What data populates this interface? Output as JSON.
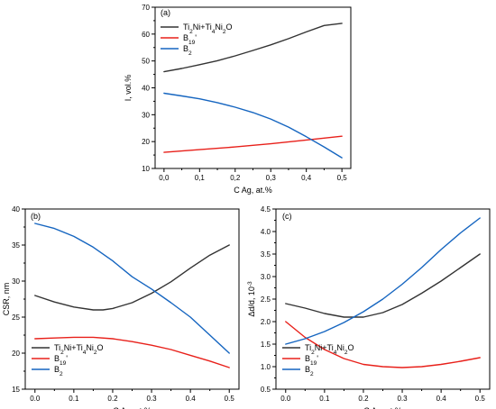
{
  "chart_data": [
    {
      "type": "line",
      "panel_label": "(a)",
      "xlabel": "C Ag, at.%",
      "ylabel": "I, vol.%",
      "xlim": [
        -0.025,
        0.525
      ],
      "ylim": [
        10,
        70
      ],
      "xticks": [
        0.0,
        0.1,
        0.2,
        0.3,
        0.4,
        0.5
      ],
      "xtick_labels": [
        "0,0",
        "0,1",
        "0,2",
        "0,3",
        "0,4",
        "0,5"
      ],
      "yticks": [
        10,
        20,
        30,
        40,
        50,
        60,
        70
      ],
      "ytick_labels": [
        "10",
        "20",
        "30",
        "40",
        "50",
        "60",
        "70"
      ],
      "legend_position": "top-right",
      "series": [
        {
          "name": "Ti2Ni+Ti4Ni2O",
          "color": "#333333",
          "x": [
            0,
            0.05,
            0.1,
            0.15,
            0.2,
            0.25,
            0.3,
            0.35,
            0.4,
            0.45,
            0.5
          ],
          "y": [
            46,
            47.2,
            48.6,
            50.1,
            51.9,
            53.9,
            56,
            58.3,
            60.8,
            63.2,
            64
          ]
        },
        {
          "name": "B19'",
          "color": "#e8201a",
          "x": [
            0,
            0.1,
            0.2,
            0.3,
            0.4,
            0.5
          ],
          "y": [
            16,
            17,
            18,
            19.2,
            20.6,
            22
          ]
        },
        {
          "name": "B2",
          "color": "#1565c0",
          "x": [
            0,
            0.05,
            0.1,
            0.15,
            0.2,
            0.25,
            0.3,
            0.35,
            0.4,
            0.45,
            0.5
          ],
          "y": [
            38,
            37,
            35.9,
            34.5,
            32.8,
            30.8,
            28.4,
            25.4,
            21.8,
            18,
            14
          ]
        }
      ]
    },
    {
      "type": "line",
      "panel_label": "(b)",
      "xlabel": "C Ag, at.%",
      "ylabel": "CSR, nm",
      "xlim": [
        -0.025,
        0.525
      ],
      "ylim": [
        15,
        40
      ],
      "xticks": [
        0.0,
        0.1,
        0.2,
        0.3,
        0.4,
        0.5
      ],
      "xtick_labels": [
        "0.0",
        "0.1",
        "0.2",
        "0.3",
        "0.4",
        "0.5"
      ],
      "yticks": [
        15,
        20,
        25,
        30,
        35,
        40
      ],
      "ytick_labels": [
        "15",
        "20",
        "25",
        "30",
        "35",
        "40"
      ],
      "legend_position": "bottom-left",
      "series": [
        {
          "name": "Ti2Ni+Ti4Ni2O",
          "color": "#333333",
          "x": [
            0,
            0.05,
            0.1,
            0.15,
            0.175,
            0.2,
            0.25,
            0.3,
            0.35,
            0.4,
            0.45,
            0.5
          ],
          "y": [
            28,
            27.1,
            26.4,
            26,
            26,
            26.2,
            27,
            28.3,
            29.9,
            31.8,
            33.6,
            35
          ]
        },
        {
          "name": "B19'",
          "color": "#e8201a",
          "x": [
            0,
            0.05,
            0.1,
            0.15,
            0.2,
            0.25,
            0.3,
            0.35,
            0.4,
            0.45,
            0.5
          ],
          "y": [
            22,
            22.1,
            22.2,
            22.2,
            22,
            21.6,
            21.1,
            20.5,
            19.7,
            18.9,
            18
          ]
        },
        {
          "name": "B2",
          "color": "#1565c0",
          "x": [
            0,
            0.05,
            0.1,
            0.15,
            0.2,
            0.25,
            0.3,
            0.35,
            0.4,
            0.45,
            0.5
          ],
          "y": [
            38,
            37.3,
            36.2,
            34.7,
            32.8,
            30.6,
            28.9,
            27,
            25,
            22.5,
            20
          ]
        }
      ]
    },
    {
      "type": "line",
      "panel_label": "(c)",
      "xlabel": "C Ag, at.%",
      "ylabel": "Δd/d, 10",
      "ylabel_superscript": "-3",
      "xlim": [
        -0.025,
        0.525
      ],
      "ylim": [
        0.5,
        4.5
      ],
      "xticks": [
        0.0,
        0.1,
        0.2,
        0.3,
        0.4,
        0.5
      ],
      "xtick_labels": [
        "0.0",
        "0.1",
        "0.2",
        "0.3",
        "0.4",
        "0.5"
      ],
      "yticks": [
        0.5,
        1.0,
        1.5,
        2.0,
        2.5,
        3.0,
        3.5,
        4.0,
        4.5
      ],
      "ytick_labels": [
        "0.5",
        "1.0",
        "1.5",
        "2.0",
        "2.5",
        "3.0",
        "3.5",
        "4.0",
        "4.5"
      ],
      "legend_position": "bottom-left",
      "series": [
        {
          "name": "Ti2Ni+Ti4Ni2O",
          "color": "#333333",
          "x": [
            0,
            0.05,
            0.1,
            0.15,
            0.2,
            0.25,
            0.3,
            0.35,
            0.4,
            0.45,
            0.5
          ],
          "y": [
            2.4,
            2.3,
            2.18,
            2.1,
            2.1,
            2.2,
            2.38,
            2.63,
            2.9,
            3.2,
            3.5
          ]
        },
        {
          "name": "B19'",
          "color": "#e8201a",
          "x": [
            0,
            0.05,
            0.1,
            0.15,
            0.2,
            0.25,
            0.3,
            0.35,
            0.4,
            0.45,
            0.5
          ],
          "y": [
            2.0,
            1.65,
            1.38,
            1.18,
            1.05,
            1.0,
            0.98,
            1.0,
            1.05,
            1.12,
            1.2
          ]
        },
        {
          "name": "B2",
          "color": "#1565c0",
          "x": [
            0,
            0.05,
            0.1,
            0.15,
            0.2,
            0.25,
            0.3,
            0.35,
            0.4,
            0.45,
            0.5
          ],
          "y": [
            1.5,
            1.62,
            1.78,
            1.98,
            2.22,
            2.5,
            2.83,
            3.2,
            3.6,
            3.97,
            4.3
          ]
        }
      ]
    }
  ]
}
